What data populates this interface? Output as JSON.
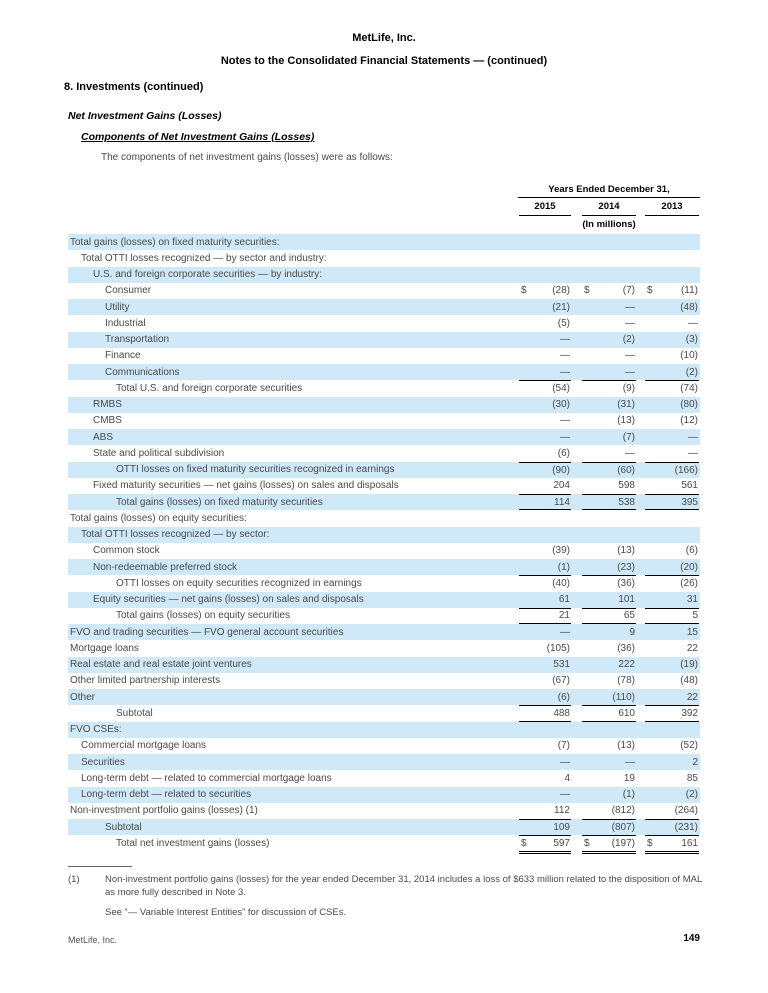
{
  "page": {
    "company": "MetLife, Inc.",
    "doc_title": "Notes to the Consolidated Financial Statements — (continued)",
    "section": "8. Investments (continued)",
    "subsection": "Net Investment Gains (Losses)",
    "subsubsection": "Components of Net Investment Gains (Losses)",
    "intro": "The components of net investment gains (losses) were as follows:",
    "footer_left": "MetLife, Inc.",
    "page_number": "149"
  },
  "colors": {
    "row_shade": "#cfe9f8",
    "body_text": "#4a4a4a",
    "heading_text": "#000000"
  },
  "table": {
    "period_header": "Years Ended December 31,",
    "years": [
      "2015",
      "2014",
      "2013"
    ],
    "units": "(In millions)",
    "rows": [
      {
        "label": "Total gains (losses) on fixed maturity securities:",
        "indent": 0,
        "values": null
      },
      {
        "label": "Total OTTI losses recognized — by sector and industry:",
        "indent": 1,
        "values": null
      },
      {
        "label": "U.S. and foreign corporate securities — by industry:",
        "indent": 2,
        "values": null
      },
      {
        "label": "Consumer",
        "indent": 3,
        "dollar": true,
        "values": [
          "(28)",
          "(7)",
          "(11)"
        ]
      },
      {
        "label": "Utility",
        "indent": 3,
        "values": [
          "(21)",
          "—",
          "(48)"
        ]
      },
      {
        "label": "Industrial",
        "indent": 3,
        "values": [
          "(5)",
          "—",
          "—"
        ]
      },
      {
        "label": "Transportation",
        "indent": 3,
        "values": [
          "—",
          "(2)",
          "(3)"
        ]
      },
      {
        "label": "Finance",
        "indent": 3,
        "values": [
          "—",
          "—",
          "(10)"
        ]
      },
      {
        "label": "Communications",
        "indent": 3,
        "values": [
          "—",
          "—",
          "(2)"
        ]
      },
      {
        "label": "Total U.S. and foreign corporate securities",
        "indent": 4,
        "top_rule": true,
        "values": [
          "(54)",
          "(9)",
          "(74)"
        ]
      },
      {
        "label": "RMBS",
        "indent": 2,
        "values": [
          "(30)",
          "(31)",
          "(80)"
        ]
      },
      {
        "label": "CMBS",
        "indent": 2,
        "values": [
          "—",
          "(13)",
          "(12)"
        ]
      },
      {
        "label": "ABS",
        "indent": 2,
        "values": [
          "—",
          "(7)",
          "—"
        ]
      },
      {
        "label": "State and political subdivision",
        "indent": 2,
        "values": [
          "(6)",
          "—",
          "—"
        ]
      },
      {
        "label": "OTTI losses on fixed maturity securities recognized in earnings",
        "indent": 4,
        "top_rule": true,
        "values": [
          "(90)",
          "(60)",
          "(166)"
        ]
      },
      {
        "label": "Fixed maturity securities — net gains (losses) on sales and disposals",
        "indent": 2,
        "values": [
          "204",
          "598",
          "561"
        ]
      },
      {
        "label": "Total gains (losses) on fixed maturity securities",
        "indent": 4,
        "top_rule": true,
        "bottom_rule": true,
        "values": [
          "114",
          "538",
          "395"
        ]
      },
      {
        "label": "Total gains (losses) on equity securities:",
        "indent": 0,
        "values": null
      },
      {
        "label": "Total OTTI losses recognized — by sector:",
        "indent": 1,
        "values": null
      },
      {
        "label": "Common stock",
        "indent": 2,
        "values": [
          "(39)",
          "(13)",
          "(6)"
        ]
      },
      {
        "label": "Non-redeemable preferred stock",
        "indent": 2,
        "values": [
          "(1)",
          "(23)",
          "(20)"
        ]
      },
      {
        "label": "OTTI losses on equity securities recognized in earnings",
        "indent": 4,
        "top_rule": true,
        "values": [
          "(40)",
          "(36)",
          "(26)"
        ]
      },
      {
        "label": "Equity securities — net gains (losses) on sales and disposals",
        "indent": 2,
        "values": [
          "61",
          "101",
          "31"
        ]
      },
      {
        "label": "Total gains (losses) on equity securities",
        "indent": 4,
        "top_rule": true,
        "bottom_rule": true,
        "values": [
          "21",
          "65",
          "5"
        ]
      },
      {
        "label": "FVO and trading securities — FVO general account securities",
        "indent": 0,
        "values": [
          "—",
          "9",
          "15"
        ]
      },
      {
        "label": "Mortgage loans",
        "indent": 0,
        "values": [
          "(105)",
          "(36)",
          "22"
        ]
      },
      {
        "label": "Real estate and real estate joint ventures",
        "indent": 0,
        "values": [
          "531",
          "222",
          "(19)"
        ]
      },
      {
        "label": "Other limited partnership interests",
        "indent": 0,
        "values": [
          "(67)",
          "(78)",
          "(48)"
        ]
      },
      {
        "label": "Other",
        "indent": 0,
        "values": [
          "(6)",
          "(110)",
          "22"
        ]
      },
      {
        "label": "Subtotal",
        "indent": 4,
        "top_rule": true,
        "bottom_rule": true,
        "values": [
          "488",
          "610",
          "392"
        ]
      },
      {
        "label": "FVO CSEs:",
        "indent": 0,
        "values": null
      },
      {
        "label": "Commercial mortgage loans",
        "indent": 1,
        "values": [
          "(7)",
          "(13)",
          "(52)"
        ]
      },
      {
        "label": "Securities",
        "indent": 1,
        "values": [
          "—",
          "—",
          "2"
        ]
      },
      {
        "label": "Long-term debt — related to commercial mortgage loans",
        "indent": 1,
        "values": [
          "4",
          "19",
          "85"
        ]
      },
      {
        "label": "Long-term debt — related to securities",
        "indent": 1,
        "values": [
          "—",
          "(1)",
          "(2)"
        ]
      },
      {
        "label": "Non-investment portfolio gains (losses) (1)",
        "indent": 0,
        "values": [
          "112",
          "(812)",
          "(264)"
        ]
      },
      {
        "label": "Subtotal",
        "indent": 3,
        "top_rule": true,
        "values": [
          "109",
          "(807)",
          "(231)"
        ]
      },
      {
        "label": "Total net investment gains (losses)",
        "indent": 4,
        "dollar": true,
        "top_rule": true,
        "double_bottom": true,
        "values": [
          "597",
          "(197)",
          "161"
        ]
      }
    ]
  },
  "footnotes": {
    "note1_marker": "(1)",
    "note1_text": "Non-investment portfolio gains (losses) for the year ended December 31, 2014 includes a loss of $633 million related to the disposition of MAL as more fully described in Note 3.",
    "see_note": "See “— Variable Interest Entities” for discussion of CSEs."
  }
}
